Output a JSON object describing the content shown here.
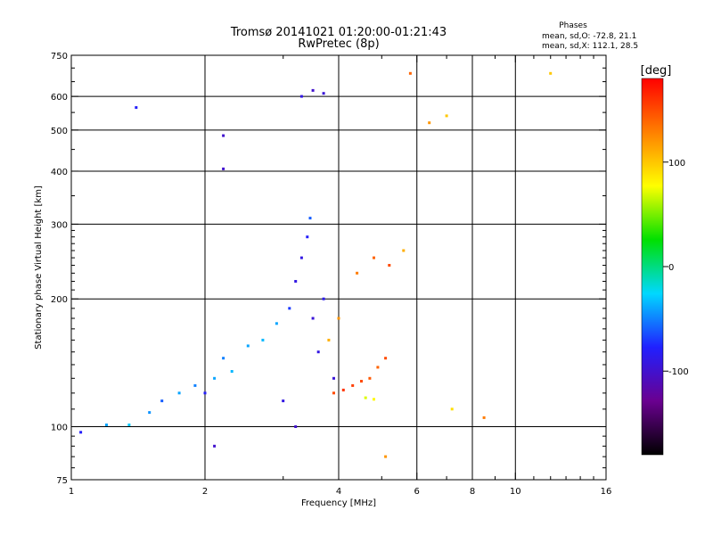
{
  "header": {
    "title": "Tromsø 20141021 01:20:00-01:21:43",
    "subtitle": "RwPretec (8p)",
    "stats_title": "Phases",
    "stats_o": "mean, sd,O: -72.8, 21.1",
    "stats_x": "mean, sd,X: 112.1, 28.5"
  },
  "colorbar": {
    "unit_label": "[deg]",
    "ticks": [
      {
        "value": 100,
        "label": "100"
      },
      {
        "value": 0,
        "label": "0"
      },
      {
        "value": -100,
        "label": "-100"
      }
    ],
    "range": [
      -180,
      180
    ],
    "colors": [
      "#000000",
      "#6a0090",
      "#2020ff",
      "#00d8ff",
      "#00e000",
      "#ffff00",
      "#ff8000",
      "#ff0000"
    ]
  },
  "chart_data": {
    "type": "scatter",
    "title": "Tromsø 20141021 01:20:00-01:21:43",
    "subtitle": "RwPretec (8p)",
    "xlabel": "Frequency [MHz]",
    "ylabel": "Stationary phase Virtual Height [km]",
    "xscale": "log",
    "yscale": "log",
    "xlim": [
      1,
      16
    ],
    "ylim": [
      75,
      750
    ],
    "xticks": [
      1,
      2,
      4,
      6,
      8,
      10,
      16
    ],
    "xtick_labels": [
      "1",
      "2",
      "4",
      "6",
      "8",
      "10",
      "16"
    ],
    "x_grid": [
      2,
      4,
      6,
      8,
      10
    ],
    "yticks": [
      75,
      100,
      200,
      300,
      400,
      500,
      600,
      750
    ],
    "ytick_labels": [
      "75",
      "100",
      "200",
      "300",
      "400",
      "500",
      "600",
      "750"
    ],
    "y_grid": [
      100,
      200,
      300,
      400,
      500,
      600
    ],
    "grid": true,
    "color_variable": "phase [deg]",
    "series": [
      {
        "values": [
          {
            "x": 1.05,
            "y": 97,
            "c": -80
          },
          {
            "x": 1.2,
            "y": 101,
            "c": -40
          },
          {
            "x": 1.35,
            "y": 101,
            "c": -30
          },
          {
            "x": 1.5,
            "y": 108,
            "c": -45
          },
          {
            "x": 1.6,
            "y": 115,
            "c": -60
          },
          {
            "x": 1.75,
            "y": 120,
            "c": -40
          },
          {
            "x": 1.9,
            "y": 125,
            "c": -50
          },
          {
            "x": 2.0,
            "y": 120,
            "c": -80
          },
          {
            "x": 2.1,
            "y": 130,
            "c": -40
          },
          {
            "x": 2.2,
            "y": 145,
            "c": -50
          },
          {
            "x": 2.3,
            "y": 135,
            "c": -35
          },
          {
            "x": 2.5,
            "y": 155,
            "c": -40
          },
          {
            "x": 2.7,
            "y": 160,
            "c": -35
          },
          {
            "x": 2.9,
            "y": 175,
            "c": -40
          },
          {
            "x": 3.0,
            "y": 115,
            "c": -90
          },
          {
            "x": 3.1,
            "y": 190,
            "c": -70
          },
          {
            "x": 3.2,
            "y": 220,
            "c": -90
          },
          {
            "x": 3.3,
            "y": 250,
            "c": -90
          },
          {
            "x": 3.4,
            "y": 280,
            "c": -80
          },
          {
            "x": 3.45,
            "y": 310,
            "c": -60
          },
          {
            "x": 3.5,
            "y": 180,
            "c": -95
          },
          {
            "x": 3.6,
            "y": 150,
            "c": -90
          },
          {
            "x": 3.7,
            "y": 200,
            "c": -85
          },
          {
            "x": 3.9,
            "y": 130,
            "c": -95
          },
          {
            "x": 3.3,
            "y": 600,
            "c": -90
          },
          {
            "x": 3.5,
            "y": 620,
            "c": -100
          },
          {
            "x": 3.7,
            "y": 610,
            "c": -95
          },
          {
            "x": 2.2,
            "y": 485,
            "c": -100
          },
          {
            "x": 2.2,
            "y": 405,
            "c": -100
          },
          {
            "x": 1.4,
            "y": 565,
            "c": -80
          },
          {
            "x": 2.1,
            "y": 90,
            "c": -100
          },
          {
            "x": 3.2,
            "y": 100,
            "c": -100
          }
        ]
      },
      {
        "values": [
          {
            "x": 3.9,
            "y": 120,
            "c": 150
          },
          {
            "x": 4.1,
            "y": 122,
            "c": 160
          },
          {
            "x": 4.3,
            "y": 125,
            "c": 155
          },
          {
            "x": 4.5,
            "y": 128,
            "c": 150
          },
          {
            "x": 4.7,
            "y": 130,
            "c": 145
          },
          {
            "x": 4.9,
            "y": 138,
            "c": 140
          },
          {
            "x": 5.1,
            "y": 145,
            "c": 150
          },
          {
            "x": 4.6,
            "y": 117,
            "c": 70
          },
          {
            "x": 4.8,
            "y": 116,
            "c": 80
          },
          {
            "x": 3.8,
            "y": 160,
            "c": 110
          },
          {
            "x": 4.0,
            "y": 180,
            "c": 120
          },
          {
            "x": 4.4,
            "y": 230,
            "c": 130
          },
          {
            "x": 4.8,
            "y": 250,
            "c": 140
          },
          {
            "x": 5.2,
            "y": 240,
            "c": 150
          },
          {
            "x": 5.6,
            "y": 260,
            "c": 110
          },
          {
            "x": 5.8,
            "y": 680,
            "c": 140
          },
          {
            "x": 6.4,
            "y": 520,
            "c": 120
          },
          {
            "x": 7.0,
            "y": 540,
            "c": 100
          },
          {
            "x": 7.2,
            "y": 110,
            "c": 90
          },
          {
            "x": 8.5,
            "y": 105,
            "c": 130
          },
          {
            "x": 12.0,
            "y": 680,
            "c": 100
          },
          {
            "x": 5.1,
            "y": 85,
            "c": 120
          }
        ]
      }
    ]
  }
}
